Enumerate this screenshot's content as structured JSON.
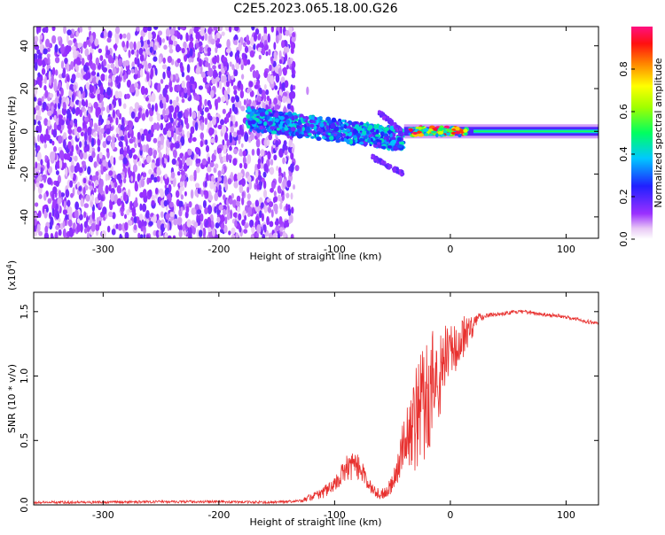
{
  "chart_data": [
    {
      "type": "heatmap",
      "title": "C2E5.2023.065.18.00.G26",
      "xlabel": "Height of straight line (km)",
      "ylabel": "Frequency (Hz)",
      "xlim": [
        -360,
        128
      ],
      "ylim": [
        -50,
        49
      ],
      "xticks": [
        -300,
        -200,
        -100,
        0,
        100
      ],
      "yticks": [
        -40,
        -20,
        0,
        20,
        40
      ],
      "colorbar": {
        "label": "Normalized spectral amplitude",
        "range": [
          0.0,
          1.0
        ],
        "ticks": [
          "0.0",
          "0.2",
          "0.4",
          "0.6",
          "0.8"
        ],
        "tick_values": [
          0.0,
          0.2,
          0.4,
          0.6,
          0.8
        ],
        "colormap": "rainbow (white-violet-blue-cyan-green-yellow-red-magenta)"
      },
      "regions": [
        {
          "x_range": [
            -360,
            -135
          ],
          "freq_range": [
            -50,
            49
          ],
          "amplitude": 0.15,
          "description": "broadband noise"
        },
        {
          "x_range": [
            -175,
            -40
          ],
          "freq_center": 0,
          "amplitude_peak": 0.4
        },
        {
          "x_range": [
            -60,
            -42
          ],
          "freq_from": 8,
          "freq_to": 0,
          "amplitude": 0.15
        },
        {
          "x_range": [
            -60,
            -40
          ],
          "freq_from": -20,
          "freq_to": -12,
          "amplitude": 0.15
        },
        {
          "x_range": [
            -30,
            20
          ],
          "freq_center": 0,
          "amplitude_peak": 0.95
        },
        {
          "x_range": [
            20,
            128
          ],
          "freq_center": 0,
          "amplitude_peak": 0.35
        }
      ]
    },
    {
      "type": "line",
      "xlabel": "Height of straight line (km)",
      "ylabel": "SNR (10 * v/v)",
      "y_scale_label": "(x10",
      "y_scale_exp": "4",
      "y_scale_suffix": ")",
      "xlim": [
        -360,
        128
      ],
      "ylim": [
        0,
        1.65
      ],
      "xticks": [
        -300,
        -200,
        -100,
        0,
        100
      ],
      "yticks": [
        "0.0",
        "0.5",
        "1.0",
        "1.5"
      ],
      "ytick_values": [
        0.0,
        0.5,
        1.0,
        1.5
      ],
      "line_color": "#e8312f",
      "series": [
        {
          "x": [
            -360,
            -300,
            -250,
            -200,
            -160,
            -130,
            -120,
            -110,
            -100,
            -95,
            -90,
            -85,
            -80,
            -75,
            -70,
            -65,
            -60,
            -55,
            -50,
            -45,
            -40,
            -35,
            -30,
            -25,
            -20,
            -15,
            -10,
            -5,
            0,
            5,
            10,
            15,
            20,
            25,
            30,
            40,
            50,
            60,
            70,
            80,
            90,
            100,
            110,
            120,
            128
          ],
          "y": [
            0.02,
            0.02,
            0.025,
            0.025,
            0.02,
            0.03,
            0.06,
            0.1,
            0.15,
            0.22,
            0.28,
            0.3,
            0.3,
            0.25,
            0.15,
            0.1,
            0.08,
            0.1,
            0.18,
            0.3,
            0.5,
            0.6,
            0.65,
            0.75,
            0.85,
            0.95,
            1.0,
            1.1,
            1.2,
            1.2,
            1.3,
            1.35,
            1.4,
            1.45,
            1.47,
            1.48,
            1.49,
            1.5,
            1.49,
            1.48,
            1.47,
            1.46,
            1.44,
            1.42,
            1.41
          ],
          "noise_amplitude": [
            0.01,
            0.01,
            0.01,
            0.01,
            0.01,
            0.01,
            0.03,
            0.05,
            0.06,
            0.08,
            0.1,
            0.12,
            0.1,
            0.08,
            0.05,
            0.04,
            0.04,
            0.05,
            0.08,
            0.12,
            0.2,
            0.3,
            0.4,
            0.45,
            0.5,
            0.45,
            0.35,
            0.3,
            0.25,
            0.2,
            0.2,
            0.15,
            0.08,
            0.04,
            0.02,
            0.015,
            0.015,
            0.015,
            0.015,
            0.015,
            0.015,
            0.015,
            0.015,
            0.015,
            0.015
          ]
        }
      ]
    }
  ]
}
